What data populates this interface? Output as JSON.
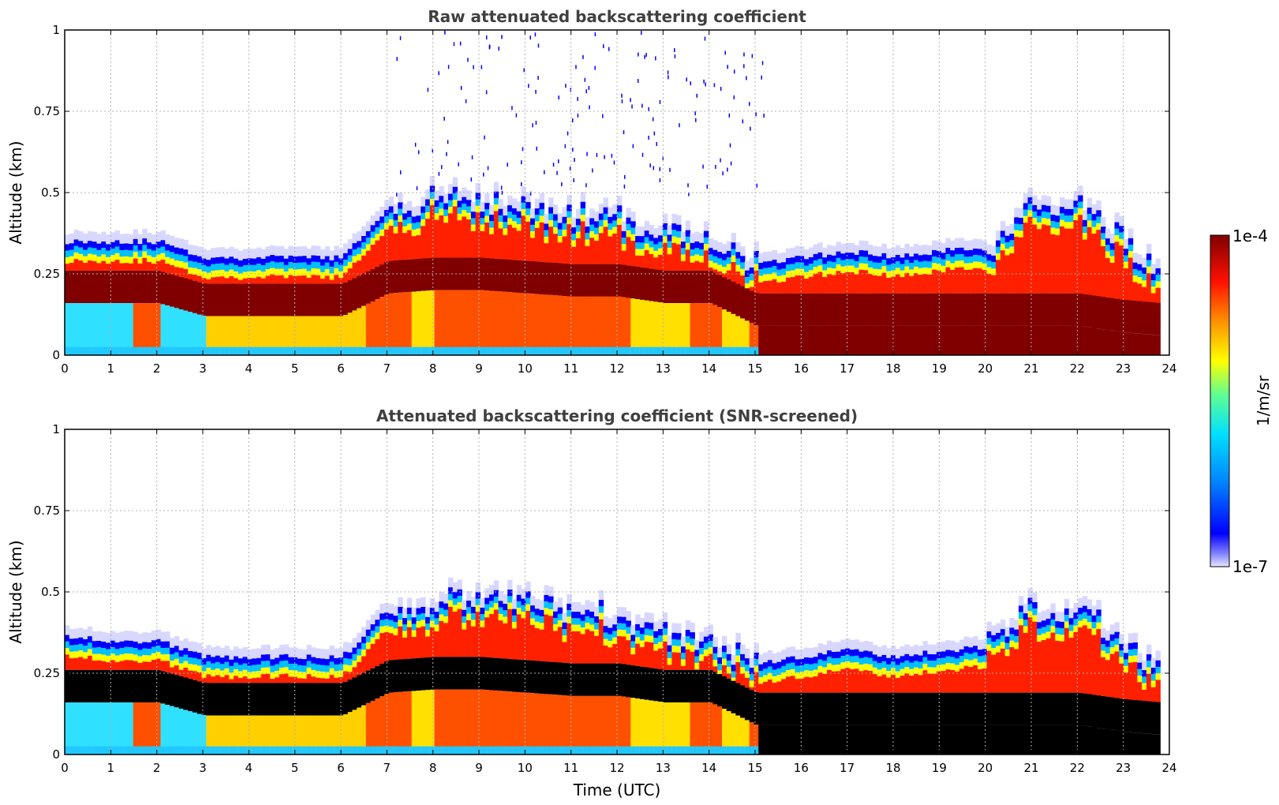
{
  "chart_data": [
    {
      "type": "heatmap",
      "title": "Raw attenuated backscattering coefficient",
      "xlabel": "",
      "ylabel": "Altitude (km)",
      "xlim": [
        0,
        24
      ],
      "ylim": [
        0,
        1
      ],
      "x_ticks": [
        "0",
        "1",
        "2",
        "3",
        "4",
        "5",
        "6",
        "7",
        "8",
        "9",
        "10",
        "11",
        "12",
        "13",
        "14",
        "15",
        "16",
        "17",
        "18",
        "19",
        "20",
        "21",
        "22",
        "23",
        "24"
      ],
      "y_ticks": [
        "0",
        "0.25",
        "0.5",
        "0.75",
        "1"
      ],
      "grid": true,
      "variant": "raw",
      "layer_top_km": {
        "time_utc": [
          0,
          1,
          2,
          3,
          4,
          5,
          6,
          7,
          8,
          9,
          10,
          11,
          12,
          13,
          14,
          15,
          16,
          17,
          18,
          19,
          20,
          21,
          22,
          23,
          23.8
        ],
        "altitude_km": [
          0.35,
          0.35,
          0.35,
          0.3,
          0.3,
          0.3,
          0.3,
          0.45,
          0.48,
          0.48,
          0.45,
          0.43,
          0.42,
          0.38,
          0.36,
          0.28,
          0.3,
          0.32,
          0.3,
          0.32,
          0.33,
          0.45,
          0.45,
          0.35,
          0.25
        ]
      },
      "layer_core_km": {
        "time_utc": [
          0,
          1,
          2,
          3,
          4,
          5,
          6,
          7,
          8,
          9,
          10,
          11,
          12,
          13,
          14,
          15,
          16,
          17,
          18,
          19,
          20,
          21,
          22,
          23,
          23.8
        ],
        "altitude_km": [
          0.22,
          0.22,
          0.22,
          0.18,
          0.18,
          0.18,
          0.18,
          0.25,
          0.26,
          0.26,
          0.25,
          0.24,
          0.24,
          0.22,
          0.22,
          0.15,
          0.15,
          0.15,
          0.15,
          0.15,
          0.15,
          0.15,
          0.15,
          0.13,
          0.12
        ]
      }
    },
    {
      "type": "heatmap",
      "title": "Attenuated backscattering coefficient (SNR-screened)",
      "xlabel": "Time (UTC)",
      "ylabel": "Altitude (km)",
      "xlim": [
        0,
        24
      ],
      "ylim": [
        0,
        1
      ],
      "x_ticks": [
        "0",
        "1",
        "2",
        "3",
        "4",
        "5",
        "6",
        "7",
        "8",
        "9",
        "10",
        "11",
        "12",
        "13",
        "14",
        "15",
        "16",
        "17",
        "18",
        "19",
        "20",
        "21",
        "22",
        "23",
        "24"
      ],
      "y_ticks": [
        "0",
        "0.25",
        "0.5",
        "0.75",
        "1"
      ],
      "grid": true,
      "variant": "screened",
      "layer_top_km": {
        "time_utc": [
          0,
          1,
          2,
          3,
          4,
          5,
          6,
          7,
          8,
          9,
          10,
          11,
          12,
          13,
          14,
          15,
          16,
          17,
          18,
          19,
          20,
          21,
          22,
          23,
          23.8
        ],
        "altitude_km": [
          0.36,
          0.35,
          0.35,
          0.3,
          0.3,
          0.3,
          0.3,
          0.45,
          0.47,
          0.47,
          0.46,
          0.44,
          0.43,
          0.37,
          0.35,
          0.28,
          0.3,
          0.32,
          0.3,
          0.32,
          0.33,
          0.45,
          0.45,
          0.35,
          0.25
        ]
      },
      "layer_core_km": {
        "time_utc": [
          0,
          1,
          2,
          3,
          4,
          5,
          6,
          7,
          8,
          9,
          10,
          11,
          12,
          13,
          14,
          15,
          16,
          17,
          18,
          19,
          20,
          21,
          22,
          23,
          23.8
        ],
        "altitude_km": [
          0.22,
          0.22,
          0.22,
          0.18,
          0.18,
          0.18,
          0.18,
          0.25,
          0.26,
          0.26,
          0.25,
          0.24,
          0.24,
          0.22,
          0.22,
          0.15,
          0.15,
          0.15,
          0.15,
          0.15,
          0.15,
          0.15,
          0.15,
          0.13,
          0.12
        ]
      }
    }
  ],
  "colorbar": {
    "label": "1/m/sr",
    "max_label": "1e-4",
    "min_label": "1e-7",
    "scale": "log",
    "colormap": "jet",
    "colors": [
      "#e6e6ff",
      "#0000ff",
      "#00a0ff",
      "#00ffff",
      "#80ff80",
      "#ffff00",
      "#ff8000",
      "#ff0000",
      "#800000"
    ]
  }
}
